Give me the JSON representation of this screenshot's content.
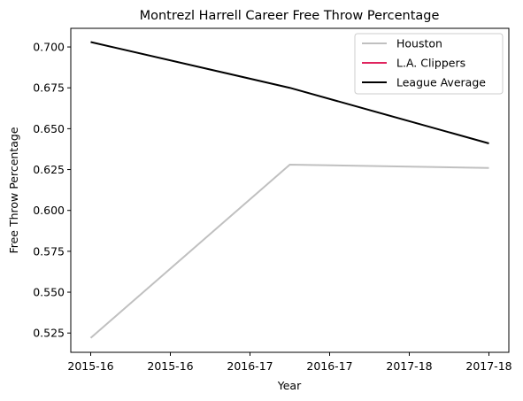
{
  "chart_data": {
    "type": "line",
    "title": "Montrezl Harrell Career Free Throw Percentage",
    "xlabel": "Year",
    "ylabel": "Free Throw Percentage",
    "x": [
      0,
      1,
      2
    ],
    "x_range": [
      -0.1,
      2.1
    ],
    "xticks": [
      0,
      0.4,
      0.8,
      1.2,
      1.6,
      2.0
    ],
    "xtick_labels": [
      "2015-16",
      "2015-16",
      "2016-17",
      "2016-17",
      "2017-18",
      "2017-18"
    ],
    "ylim": [
      0.5132,
      0.7114
    ],
    "yticks": [
      0.525,
      0.55,
      0.575,
      0.6,
      0.625,
      0.65,
      0.675,
      0.7
    ],
    "ytick_labels": [
      "0.525",
      "0.550",
      "0.575",
      "0.600",
      "0.625",
      "0.650",
      "0.675",
      "0.700"
    ],
    "series": [
      {
        "name": "Houston",
        "color": "#c0c0c0",
        "x": [
          0,
          1,
          2
        ],
        "values": [
          0.522,
          0.628,
          0.626
        ]
      },
      {
        "name": "L.A. Clippers",
        "color": "#e0245e",
        "x": [],
        "values": []
      },
      {
        "name": "League Average",
        "color": "#000000",
        "x": [
          0,
          1,
          2
        ],
        "values": [
          0.703,
          0.675,
          0.641
        ]
      }
    ],
    "legend": {
      "position": "top-right",
      "entries": [
        "Houston",
        "L.A. Clippers",
        "League Average"
      ]
    },
    "grid": false
  }
}
